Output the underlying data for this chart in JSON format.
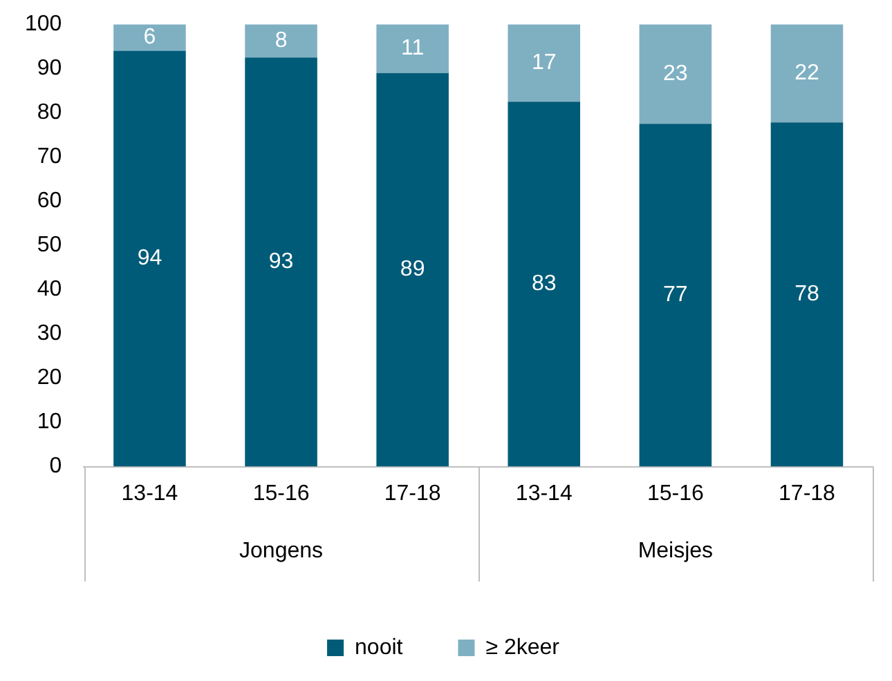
{
  "chart_data": {
    "type": "bar",
    "stacked": true,
    "categories": [
      "13-14",
      "15-16",
      "17-18",
      "13-14",
      "15-16",
      "17-18"
    ],
    "series": [
      {
        "name": "nooit",
        "color": "#005b78",
        "values": [
          94,
          92.5,
          89,
          82.5,
          77.5,
          77.8
        ],
        "value_labels": [
          "94",
          "93",
          "89",
          "83",
          "77",
          "78"
        ]
      },
      {
        "name": "≥ 2keer",
        "color": "#7fb0c2",
        "values": [
          6,
          7.5,
          11,
          17.5,
          22.5,
          22.2
        ],
        "value_labels": [
          "6",
          "8",
          "11",
          "17",
          "23",
          "22"
        ]
      }
    ],
    "annotations": [
      "Jongens",
      "Meisjes"
    ],
    "ylim": [
      0,
      100
    ],
    "yticks": [
      0,
      10,
      20,
      30,
      40,
      50,
      60,
      70,
      80,
      90,
      100
    ],
    "grid": false,
    "legend": "bottom"
  }
}
